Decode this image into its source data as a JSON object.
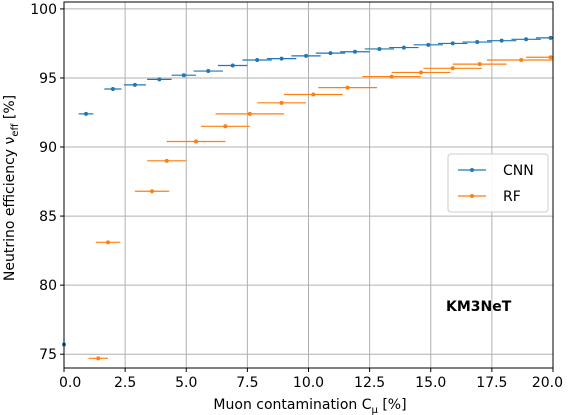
{
  "chart_data": {
    "type": "scatter",
    "xlabel": "Muon contamination C",
    "xlabel_sub": "μ",
    "xlabel_unit": " [%]",
    "ylabel": "Neutrino efficiency ν",
    "ylabel_sub": "eff",
    "ylabel_unit": " [%]",
    "xlim": [
      0,
      20
    ],
    "ylim": [
      74,
      100.5
    ],
    "xticks": [
      0,
      2.5,
      5,
      7.5,
      10,
      12.5,
      15,
      17.5,
      20
    ],
    "xtick_labels": [
      "0.0",
      "2.5",
      "5.0",
      "7.5",
      "10.0",
      "12.5",
      "15.0",
      "17.5",
      "20.0"
    ],
    "yticks": [
      75,
      80,
      85,
      90,
      95,
      100
    ],
    "ytick_labels": [
      "75",
      "80",
      "85",
      "90",
      "95",
      "100"
    ],
    "grid": true,
    "legend_position": "right",
    "annotation": "KM3NeT",
    "series": [
      {
        "name": "CNN",
        "color": "#1f77b4",
        "points": [
          {
            "x": 0.0,
            "xerr": 0.05,
            "y": 75.7
          },
          {
            "x": 0.9,
            "xerr": 0.3,
            "y": 92.4
          },
          {
            "x": 2.0,
            "xerr": 0.35,
            "y": 94.2
          },
          {
            "x": 2.9,
            "xerr": 0.45,
            "y": 94.5
          },
          {
            "x": 3.9,
            "xerr": 0.5,
            "y": 94.9
          },
          {
            "x": 4.9,
            "xerr": 0.5,
            "y": 95.2
          },
          {
            "x": 5.9,
            "xerr": 0.6,
            "y": 95.5
          },
          {
            "x": 6.9,
            "xerr": 0.6,
            "y": 95.9
          },
          {
            "x": 7.9,
            "xerr": 0.6,
            "y": 96.3
          },
          {
            "x": 8.9,
            "xerr": 0.6,
            "y": 96.4
          },
          {
            "x": 9.9,
            "xerr": 0.6,
            "y": 96.6
          },
          {
            "x": 10.9,
            "xerr": 0.6,
            "y": 96.8
          },
          {
            "x": 11.9,
            "xerr": 0.6,
            "y": 96.9
          },
          {
            "x": 12.9,
            "xerr": 0.6,
            "y": 97.1
          },
          {
            "x": 13.9,
            "xerr": 0.6,
            "y": 97.2
          },
          {
            "x": 14.9,
            "xerr": 0.6,
            "y": 97.4
          },
          {
            "x": 15.9,
            "xerr": 0.6,
            "y": 97.5
          },
          {
            "x": 16.9,
            "xerr": 0.6,
            "y": 97.6
          },
          {
            "x": 17.9,
            "xerr": 0.6,
            "y": 97.7
          },
          {
            "x": 18.9,
            "xerr": 0.6,
            "y": 97.8
          },
          {
            "x": 19.9,
            "xerr": 0.6,
            "y": 97.9
          }
        ]
      },
      {
        "name": "RF",
        "color": "#ff7f0e",
        "points": [
          {
            "x": 1.4,
            "xerr": 0.4,
            "y": 74.7
          },
          {
            "x": 1.8,
            "xerr": 0.5,
            "y": 83.1
          },
          {
            "x": 3.6,
            "xerr": 0.7,
            "y": 86.8
          },
          {
            "x": 4.2,
            "xerr": 0.8,
            "y": 89.0
          },
          {
            "x": 5.4,
            "xerr": 1.2,
            "y": 90.4
          },
          {
            "x": 6.6,
            "xerr": 1.0,
            "y": 91.5
          },
          {
            "x": 7.6,
            "xerr": 1.4,
            "y": 92.4
          },
          {
            "x": 8.9,
            "xerr": 1.0,
            "y": 93.2
          },
          {
            "x": 10.2,
            "xerr": 1.2,
            "y": 93.8
          },
          {
            "x": 11.6,
            "xerr": 1.2,
            "y": 94.3
          },
          {
            "x": 13.4,
            "xerr": 1.2,
            "y": 95.1
          },
          {
            "x": 14.6,
            "xerr": 1.2,
            "y": 95.4
          },
          {
            "x": 15.9,
            "xerr": 1.2,
            "y": 95.7
          },
          {
            "x": 17.0,
            "xerr": 1.1,
            "y": 96.0
          },
          {
            "x": 18.7,
            "xerr": 1.4,
            "y": 96.3
          },
          {
            "x": 19.9,
            "xerr": 1.0,
            "y": 96.5
          }
        ]
      }
    ]
  }
}
